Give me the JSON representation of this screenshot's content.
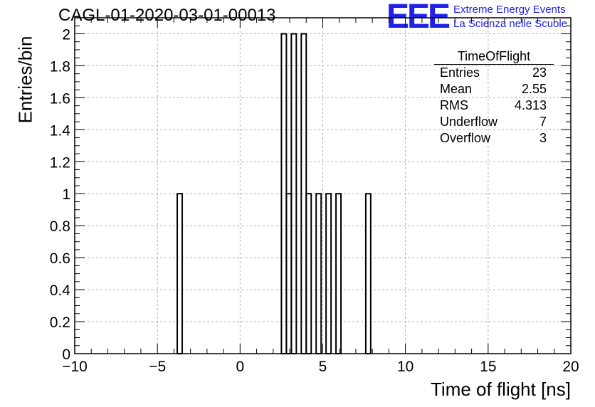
{
  "header": {
    "title": "CAGL-01-2020-03-01-00013",
    "logo_text": "EEE",
    "org_line1": "Extreme Energy Events",
    "org_line2": "La Scienza nelle Scuole"
  },
  "colors": {
    "logo": "#2020e8",
    "bars": "#000000",
    "grid": "#b0b0b0"
  },
  "stats_box": {
    "title": "TimeOfFlight",
    "rows": [
      {
        "label": "Entries",
        "value": "23"
      },
      {
        "label": "Mean",
        "value": "2.55"
      },
      {
        "label": "RMS",
        "value": "4.313"
      },
      {
        "label": "Underflow",
        "value": "7"
      },
      {
        "label": "Overflow",
        "value": "3"
      }
    ]
  },
  "chart_data": {
    "type": "bar",
    "title": "CAGL-01-2020-03-01-00013",
    "xlabel": "Time of flight [ns]",
    "ylabel": "Entries/bin",
    "xlim": [
      -10,
      20
    ],
    "ylim": [
      0,
      2.1
    ],
    "grid": true,
    "legend": "none",
    "x_ticks": [
      "−10",
      "−5",
      "0",
      "5",
      "10",
      "15",
      "20"
    ],
    "y_ticks": [
      "0",
      "0.2",
      "0.4",
      "0.6",
      "0.8",
      "1",
      "1.2",
      "1.4",
      "1.6",
      "1.8",
      "2"
    ],
    "bin_width": 0.3,
    "bins": [
      {
        "x": -3.8,
        "value": 1
      },
      {
        "x": 2.5,
        "value": 2
      },
      {
        "x": 2.8,
        "value": 1
      },
      {
        "x": 3.1,
        "value": 2
      },
      {
        "x": 3.4,
        "value": 0
      },
      {
        "x": 3.7,
        "value": 2
      },
      {
        "x": 4.0,
        "value": 1
      },
      {
        "x": 4.3,
        "value": 0
      },
      {
        "x": 4.6,
        "value": 1
      },
      {
        "x": 4.9,
        "value": 0
      },
      {
        "x": 5.2,
        "value": 1
      },
      {
        "x": 5.5,
        "value": 0
      },
      {
        "x": 5.8,
        "value": 1
      },
      {
        "x": 7.6,
        "value": 1
      }
    ]
  }
}
